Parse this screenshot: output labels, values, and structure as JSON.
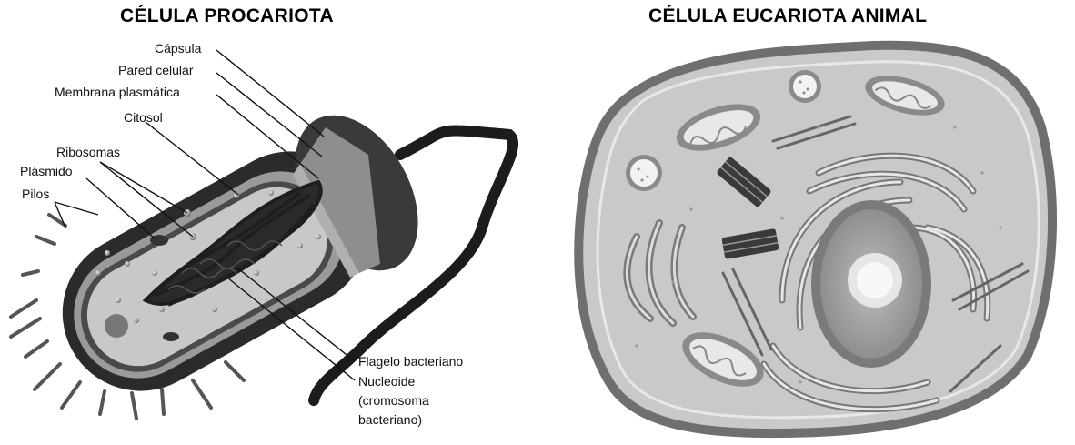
{
  "titles": {
    "prokaryote": "CÉLULA  PROCARIOTA",
    "eukaryote": "CÉLULA  EUCARIOTA ANIMAL"
  },
  "prokaryote_labels": {
    "capsule": "Cápsula",
    "cell_wall": "Pared celular",
    "plasma_membrane": "Membrana plasmática",
    "cytosol": "Citosol",
    "ribosomes": "Ribosomas",
    "plasmid": "Plásmido",
    "pili": "Pilos",
    "flagellum": "Flagelo bacteriano",
    "nucleoid": "Nucleoide",
    "nucleoid_note_1": "(cromosoma",
    "nucleoid_note_2": "bacteriano)"
  },
  "colors": {
    "capsule": "#2b2b2b",
    "wall": "#9a9a9a",
    "membrane": "#4a4a4a",
    "cytosol": "#c8c8c8",
    "nucleoid": "#1e1e1e",
    "euk_membrane": "#6f6f6f",
    "euk_cytoplasm": "#c9c9c9",
    "euk_nucleus": "#7a7a7a",
    "euk_nucleolus": "#f4f4f4"
  }
}
